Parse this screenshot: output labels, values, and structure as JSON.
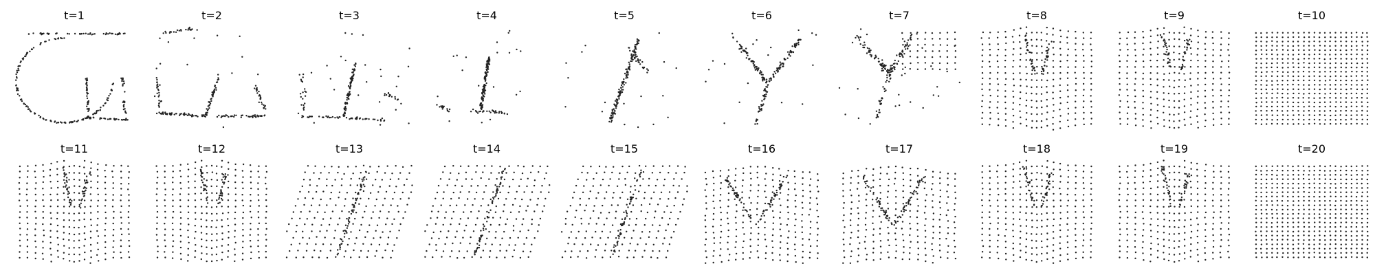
{
  "figure": {
    "panel_count": 20,
    "point_color": "#222222",
    "background": "#ffffff"
  },
  "chart_data": [
    {
      "type": "scatter",
      "title": "t=1",
      "pattern": "ring_with_stem",
      "axes": "off"
    },
    {
      "type": "scatter",
      "title": "t=2",
      "pattern": "sparse_ring_with_stem",
      "axes": "off"
    },
    {
      "type": "scatter",
      "title": "t=3",
      "pattern": "stem_with_base",
      "axes": "off"
    },
    {
      "type": "scatter",
      "title": "t=4",
      "pattern": "dense_stem",
      "axes": "off"
    },
    {
      "type": "scatter",
      "title": "t=5",
      "pattern": "diagonal_stem",
      "axes": "off"
    },
    {
      "type": "scatter",
      "title": "t=6",
      "pattern": "v_cluster",
      "axes": "off"
    },
    {
      "type": "scatter",
      "title": "t=7",
      "pattern": "v_cluster_emerging_grid",
      "axes": "off"
    },
    {
      "type": "scatter",
      "title": "t=8",
      "pattern": "distorted_grid",
      "axes": "off"
    },
    {
      "type": "scatter",
      "title": "t=9",
      "pattern": "distorted_grid",
      "axes": "off"
    },
    {
      "type": "scatter",
      "title": "t=10",
      "pattern": "regular_grid",
      "axes": "off"
    },
    {
      "type": "scatter",
      "title": "t=11",
      "pattern": "distorted_grid",
      "axes": "off"
    },
    {
      "type": "scatter",
      "title": "t=12",
      "pattern": "distorted_grid",
      "axes": "off"
    },
    {
      "type": "scatter",
      "title": "t=13",
      "pattern": "diagonal_grid_stem",
      "axes": "off"
    },
    {
      "type": "scatter",
      "title": "t=14",
      "pattern": "diagonal_grid_stem",
      "axes": "off"
    },
    {
      "type": "scatter",
      "title": "t=15",
      "pattern": "diagonal_grid_stem",
      "axes": "off"
    },
    {
      "type": "scatter",
      "title": "t=16",
      "pattern": "v_cluster_grid",
      "axes": "off"
    },
    {
      "type": "scatter",
      "title": "t=17",
      "pattern": "v_cluster_grid",
      "axes": "off"
    },
    {
      "type": "scatter",
      "title": "t=18",
      "pattern": "distorted_grid",
      "axes": "off"
    },
    {
      "type": "scatter",
      "title": "t=19",
      "pattern": "distorted_grid",
      "axes": "off"
    },
    {
      "type": "scatter",
      "title": "t=20",
      "pattern": "regular_grid",
      "axes": "off"
    }
  ]
}
